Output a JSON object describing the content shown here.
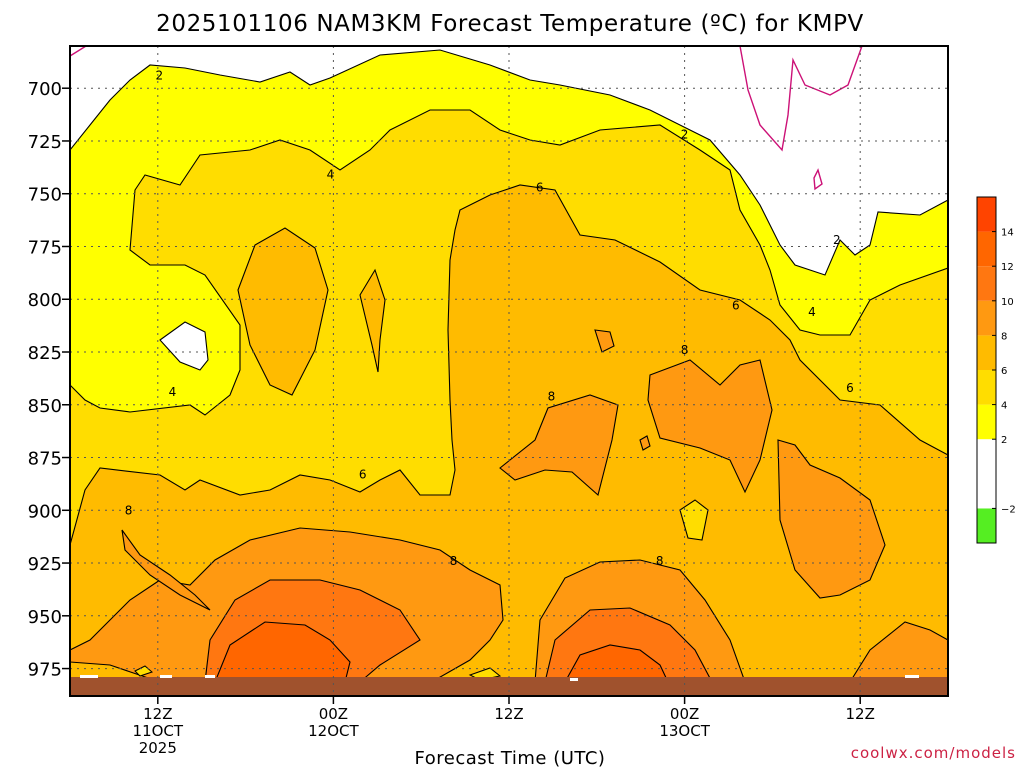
{
  "chart_data": {
    "type": "heatmap",
    "title": "2025101106 NAM3KM Forecast Temperature (ºC) for KMPV",
    "xlabel": "Forecast Time (UTC)",
    "ylabel": "",
    "x_ticks": [
      {
        "hour": 6,
        "lines": [
          "12Z",
          "11OCT",
          "2025"
        ]
      },
      {
        "hour": 18,
        "lines": [
          "00Z",
          "12OCT"
        ]
      },
      {
        "hour": 30,
        "lines": [
          "12Z"
        ]
      },
      {
        "hour": 42,
        "lines": [
          "00Z",
          "13OCT"
        ]
      },
      {
        "hour": 54,
        "lines": [
          "12Z"
        ]
      }
    ],
    "xlim": [
      0,
      60
    ],
    "y_ticks": [
      700,
      725,
      750,
      775,
      800,
      825,
      850,
      875,
      900,
      925,
      950,
      975
    ],
    "ylim": [
      680,
      988
    ],
    "units": "ºC",
    "colorbar": {
      "labels": [
        -2,
        2,
        4,
        6,
        8,
        10,
        12,
        14
      ],
      "bands": [
        {
          "lo": -4,
          "hi": -2,
          "color": "#55ee22"
        },
        {
          "lo": -2,
          "hi": 2,
          "color": "#ffffff"
        },
        {
          "lo": 2,
          "hi": 4,
          "color": "#ffff00"
        },
        {
          "lo": 4,
          "hi": 6,
          "color": "#ffdd00"
        },
        {
          "lo": 6,
          "hi": 8,
          "color": "#ffbb00"
        },
        {
          "lo": 8,
          "hi": 10,
          "color": "#ff9911"
        },
        {
          "lo": 10,
          "hi": 12,
          "color": "#ff7711"
        },
        {
          "lo": 12,
          "hi": 14,
          "color": "#ff6600"
        },
        {
          "lo": 14,
          "hi": 16,
          "color": "#ff4400"
        }
      ]
    },
    "contour_labels": [
      {
        "value": "2",
        "hour": 6.1,
        "p": 694
      },
      {
        "value": "4",
        "hour": 17.8,
        "p": 741
      },
      {
        "value": "6",
        "hour": 32.1,
        "p": 747
      },
      {
        "value": "2",
        "hour": 42,
        "p": 722
      },
      {
        "value": "2",
        "hour": 52.4,
        "p": 772
      },
      {
        "value": "6",
        "hour": 45.5,
        "p": 803
      },
      {
        "value": "4",
        "hour": 50.7,
        "p": 806
      },
      {
        "value": "8",
        "hour": 42,
        "p": 824
      },
      {
        "value": "4",
        "hour": 7,
        "p": 844
      },
      {
        "value": "8",
        "hour": 32.9,
        "p": 846
      },
      {
        "value": "6",
        "hour": 53.3,
        "p": 842
      },
      {
        "value": "6",
        "hour": 20,
        "p": 883
      },
      {
        "value": "8",
        "hour": 4,
        "p": 900
      },
      {
        "value": "8",
        "hour": 26.2,
        "p": 924
      },
      {
        "value": "8",
        "hour": 40.3,
        "p": 924
      }
    ]
  },
  "credit": "coolwx.com/models"
}
